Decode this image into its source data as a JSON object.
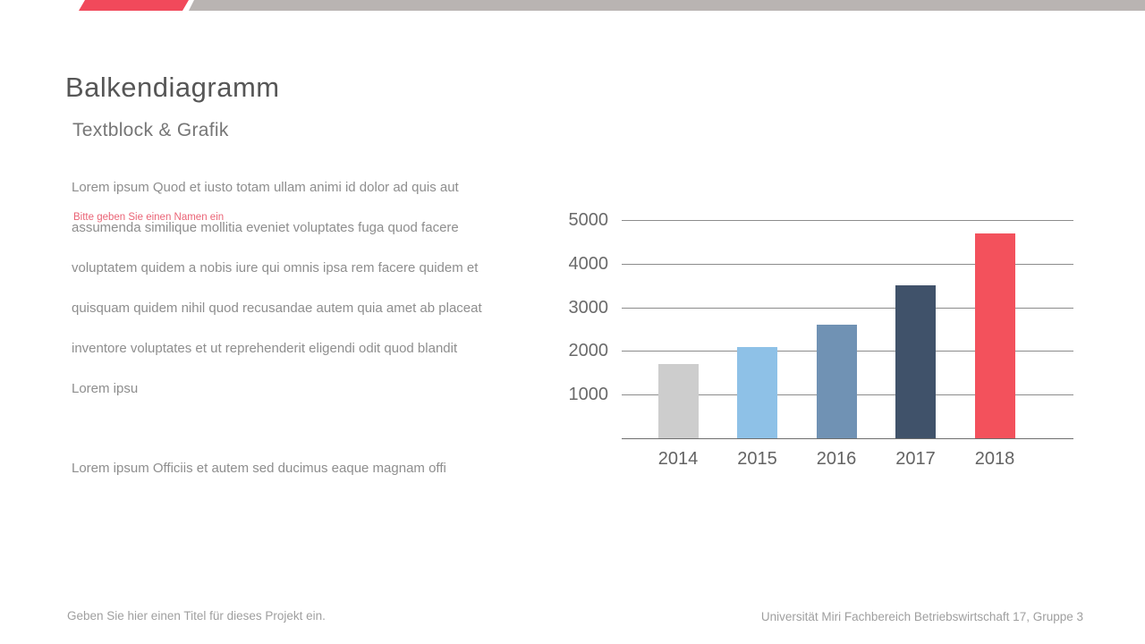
{
  "slide": {
    "title": "Balkendiagramm",
    "subtitle": "Textblock & Grafik",
    "accent_red": "#f1495b",
    "topbar_gray": "#b9b4b2"
  },
  "textblock": {
    "lines": [
      "Lorem ipsum Quod et iusto totam ullam animi id dolor ad quis aut",
      "assumenda similique mollitia eveniet voluptates fuga quod facere",
      "voluptatem quidem a nobis iure qui omnis ipsa rem facere quidem et",
      "quisquam quidem nihil quod recusandae autem quia amet ab placeat",
      "inventore voluptates et ut reprehenderit eligendi odit quod blandit",
      "Lorem ipsu"
    ],
    "placeholder_overlay": "Bitte geben Sie einen Namen ein",
    "placeholder_color": "#ea6476",
    "extra_line": "Lorem ipsum Officiis et autem sed ducimus eaque magnam offi"
  },
  "chart_data": {
    "type": "bar",
    "categories": [
      "2014",
      "2015",
      "2016",
      "2017",
      "2018"
    ],
    "values": [
      1700,
      2100,
      2600,
      3500,
      4700
    ],
    "bar_colors": [
      "#cdcdcd",
      "#8ec1e7",
      "#7092b4",
      "#40526a",
      "#f3515c"
    ],
    "title": "",
    "xlabel": "",
    "ylabel": "",
    "ylim": [
      0,
      5000
    ],
    "ytick_step": 1000,
    "ytick_labels": [
      "1000",
      "2000",
      "3000",
      "4000",
      "5000"
    ],
    "grid": true,
    "legend": false,
    "gridline_color": "#8c8c8c",
    "axis_color": "#6f6f6f"
  },
  "footer": {
    "left": "Geben Sie hier einen Titel für dieses Projekt ein.",
    "right": "Universität Miri Fachbereich Betriebswirtschaft 17, Gruppe 3"
  }
}
